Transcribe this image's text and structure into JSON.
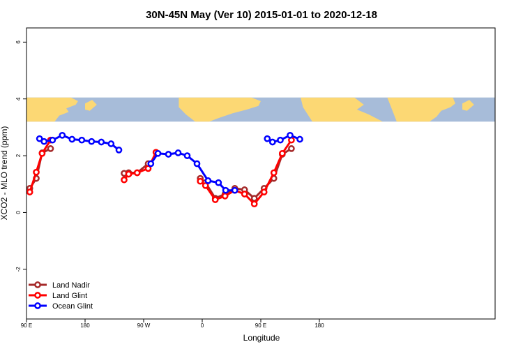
{
  "chart_data": {
    "type": "line",
    "title": "30N-45N May (Ver 10)   2015-01-01 to 2020-12-18",
    "xlabel": "Longitude",
    "ylabel": "XCO2 - MLO trend (ppm)",
    "xlim": [
      90,
      450
    ],
    "ylim": [
      -3.75,
      6.5
    ],
    "x_ticks": [
      {
        "value": 90,
        "label": "90 E"
      },
      {
        "value": 180,
        "label": "180"
      },
      {
        "value": 270,
        "label": "90 W"
      },
      {
        "value": 360,
        "label": "0"
      },
      {
        "value": 450,
        "label": "90 E"
      },
      {
        "value": 540,
        "label": "180"
      }
    ],
    "y_ticks": [
      {
        "value": -2,
        "label": "-2"
      },
      {
        "value": 0,
        "label": "0"
      },
      {
        "value": 2,
        "label": "2"
      },
      {
        "value": 4,
        "label": "4"
      },
      {
        "value": 6,
        "label": "6"
      }
    ],
    "map_strip": {
      "y_range": [
        3.2,
        4.05
      ],
      "ocean_color": "#a7bcd9",
      "land_color": "#fcd874"
    },
    "legend": {
      "position": "bottom-left"
    },
    "series": [
      {
        "name": "Land Nadir",
        "color": "#a52a2a",
        "segments": [
          [
            [
              95,
              0.85
            ],
            [
              105,
              1.2
            ],
            [
              114,
              2.1
            ],
            [
              127,
              2.25
            ]
          ],
          [
            [
              240,
              1.38
            ],
            [
              247,
              1.4
            ],
            [
              260,
              1.4
            ],
            [
              277,
              1.72
            ]
          ],
          [
            [
              357,
              1.2
            ],
            [
              365,
              1.05
            ],
            [
              380,
              0.5
            ],
            [
              395,
              0.65
            ],
            [
              410,
              0.85
            ],
            [
              425,
              0.8
            ],
            [
              440,
              0.5
            ],
            [
              455,
              0.85
            ],
            [
              470,
              1.2
            ],
            [
              483,
              2.05
            ],
            [
              497,
              2.25
            ]
          ]
        ]
      },
      {
        "name": "Land Glint",
        "color": "#ff0000",
        "segments": [
          [
            [
              95,
              0.72
            ],
            [
              105,
              1.42
            ],
            [
              114,
              2.08
            ],
            [
              127,
              2.55
            ]
          ],
          [
            [
              240,
              1.15
            ],
            [
              247,
              1.35
            ],
            [
              260,
              1.4
            ],
            [
              277,
              1.55
            ],
            [
              289,
              2.12
            ]
          ],
          [
            [
              357,
              1.1
            ],
            [
              365,
              0.95
            ],
            [
              380,
              0.45
            ],
            [
              395,
              0.58
            ],
            [
              410,
              0.78
            ],
            [
              425,
              0.65
            ],
            [
              440,
              0.3
            ],
            [
              455,
              0.72
            ],
            [
              470,
              1.4
            ],
            [
              483,
              2.08
            ],
            [
              497,
              2.55
            ]
          ]
        ]
      },
      {
        "name": "Ocean Glint",
        "color": "#0000ff",
        "segments": [
          [
            [
              110,
              2.6
            ],
            [
              117,
              2.5
            ],
            [
              130,
              2.55
            ],
            [
              145,
              2.72
            ],
            [
              160,
              2.58
            ],
            [
              175,
              2.55
            ],
            [
              190,
              2.5
            ],
            [
              205,
              2.48
            ],
            [
              220,
              2.42
            ],
            [
              232,
              2.2
            ]
          ],
          [
            [
              281,
              1.72
            ],
            [
              292,
              2.08
            ],
            [
              308,
              2.05
            ],
            [
              323,
              2.1
            ],
            [
              337,
              2.0
            ],
            [
              352,
              1.72
            ],
            [
              369,
              1.12
            ],
            [
              385,
              1.05
            ],
            [
              396,
              0.78
            ],
            [
              410,
              0.78
            ]
          ],
          [
            [
              460,
              2.6
            ],
            [
              468,
              2.48
            ],
            [
              480,
              2.55
            ],
            [
              495,
              2.72
            ],
            [
              510,
              2.58
            ]
          ]
        ]
      }
    ]
  }
}
